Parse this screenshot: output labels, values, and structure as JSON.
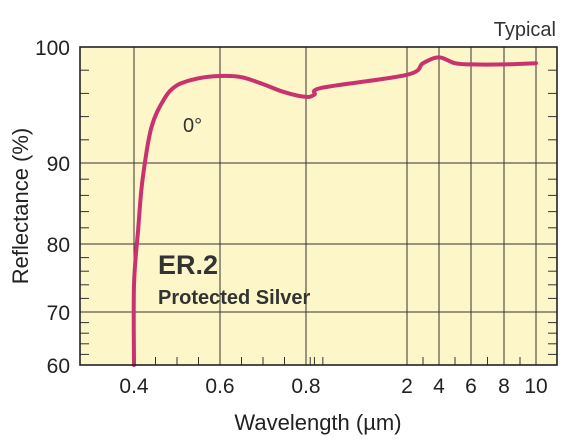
{
  "chart_data": {
    "type": "line",
    "title": "",
    "note": "Typical",
    "xlabel": "Wavelength (µm)",
    "ylabel": "Reflectance (%)",
    "product_code": "ER.2",
    "product_name": "Protected Silver",
    "x_ticks": [
      "0.4",
      "0.6",
      "0.8",
      "2",
      "4",
      "6",
      "8",
      "10"
    ],
    "y_ticks": [
      "60",
      "70",
      "80",
      "90",
      "100"
    ],
    "y_scale": "log-like (compressed at low reflectance)",
    "ylim": [
      60,
      100
    ],
    "xlim": [
      0.3,
      10.5
    ],
    "grid": true,
    "background_color": "#fcf6c8",
    "curve_color": "#c8326e",
    "series": [
      {
        "name": "0°",
        "x": [
          0.4,
          0.4,
          0.41,
          0.42,
          0.44,
          0.47,
          0.5,
          0.55,
          0.6,
          0.65,
          0.7,
          0.75,
          0.8,
          0.9,
          1,
          2,
          3,
          4,
          5,
          6,
          8,
          10
        ],
        "y": [
          60,
          74,
          82,
          88,
          93,
          95.5,
          96.7,
          97.3,
          97.5,
          97.4,
          96.8,
          96.1,
          95.7,
          95.9,
          96.5,
          97.6,
          98.6,
          99.1,
          98.6,
          98.5,
          98.5,
          98.6
        ]
      }
    ]
  }
}
